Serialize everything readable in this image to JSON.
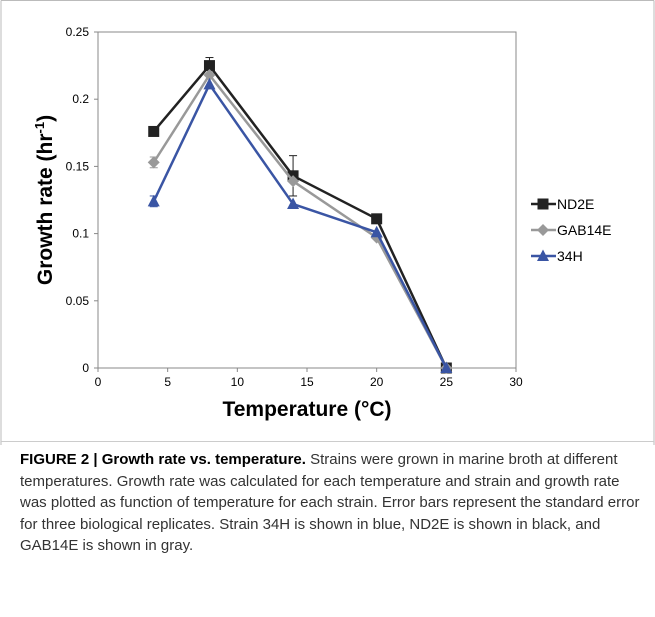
{
  "chart_data": {
    "type": "line",
    "xlabel": "Temperature (°C)",
    "ylabel_base": "Growth rate (hr",
    "ylabel_sup": "-1",
    "ylabel_end": ")",
    "xlim": [
      0,
      30
    ],
    "ylim": [
      0,
      0.25
    ],
    "x_ticks": [
      0,
      5,
      10,
      15,
      20,
      25,
      30
    ],
    "x_tick_labels": [
      "0",
      "5",
      "10",
      "15",
      "20",
      "25",
      "30"
    ],
    "y_ticks": [
      0,
      0.05,
      0.1,
      0.15,
      0.2,
      0.25
    ],
    "y_tick_labels": [
      "0",
      "0.05",
      "0.1",
      "0.15",
      "0.2",
      "0.25"
    ],
    "grid": false,
    "legend_position": "right",
    "series": [
      {
        "name": "ND2E",
        "color": "#222222",
        "marker": "square",
        "x": [
          4,
          8,
          14,
          20,
          25
        ],
        "y": [
          0.176,
          0.225,
          0.143,
          0.111,
          0.0
        ],
        "err": [
          0,
          0.006,
          0.015,
          0,
          0
        ]
      },
      {
        "name": "GAB14E",
        "color": "#999999",
        "marker": "diamond",
        "x": [
          4,
          8,
          14,
          20,
          25
        ],
        "y": [
          0.153,
          0.218,
          0.139,
          0.097,
          0.0
        ],
        "err": [
          0.004,
          0,
          0,
          0,
          0
        ]
      },
      {
        "name": "34H",
        "color": "#3a55a4",
        "marker": "triangle",
        "x": [
          4,
          8,
          14,
          20,
          25
        ],
        "y": [
          0.124,
          0.211,
          0.122,
          0.101,
          0.0
        ],
        "err": [
          0.004,
          0,
          0,
          0,
          0
        ]
      }
    ]
  },
  "caption": {
    "head": "FIGURE 2 | Growth rate vs. temperature.",
    "body": " Strains were grown in marine broth at different temperatures. Growth rate was calculated for each temperature and strain and growth rate was plotted as function of temperature for each strain. Error bars represent the standard error for three biological replicates. Strain 34H is shown in blue, ND2E is shown in black, and GAB14E is shown in gray."
  }
}
